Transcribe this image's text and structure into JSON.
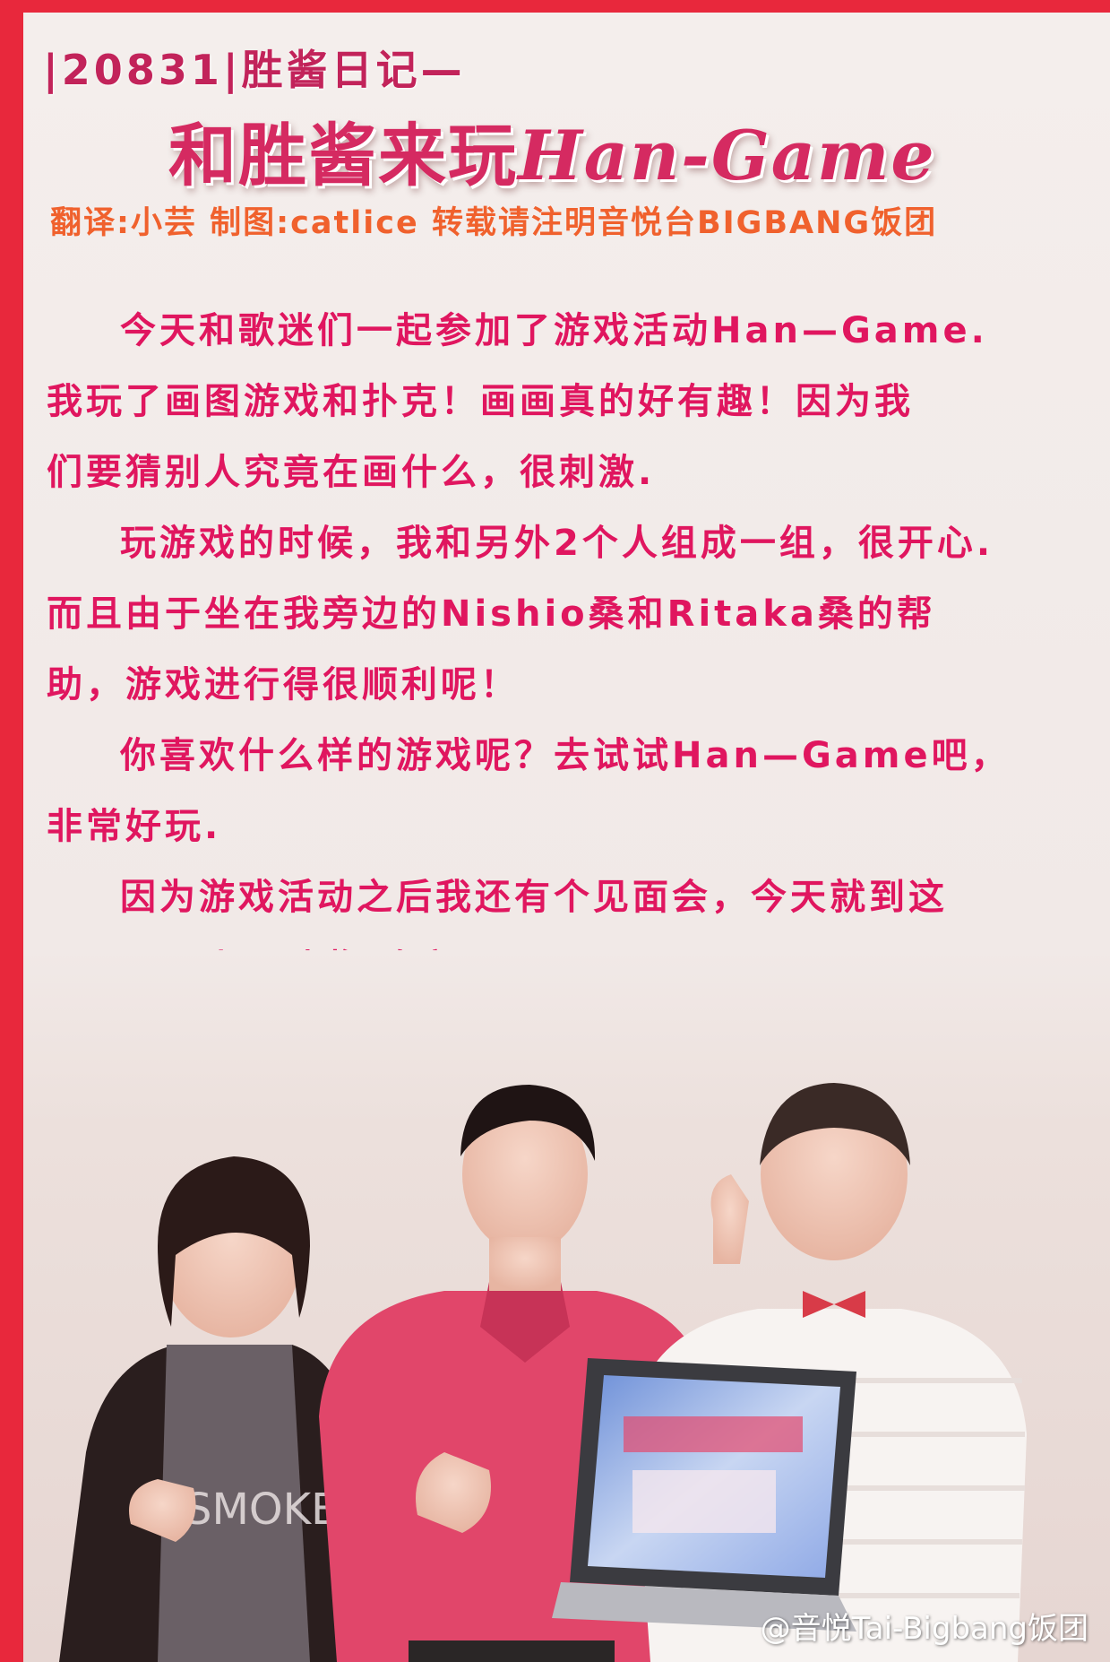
{
  "header": {
    "series_line": "|20831|胜酱日记—",
    "title_cn": "和胜酱来玩",
    "title_en": "Han-Game",
    "credits": "翻译:小芸 制图:catlice 转载请注明音悦台BIGBANG饭团"
  },
  "body": {
    "lines": [
      "今天和歌迷们一起参加了游戏活动Han—Game.",
      "我玩了画图游戏和扑克！画画真的好有趣！因为我",
      "们要猜别人究竟在画什么，很刺激.",
      "玩游戏的时候，我和另外2个人组成一组，很开心.",
      "而且由于坐在我旁边的Nishio桑和Ritaka桑的帮",
      "助，游戏进行得很顺利呢！",
      "你喜欢什么样的游戏呢？去试试Han—Game吧，",
      "非常好玩.",
      "因为游戏活动之后我还有个见面会，今天就到这",
      "儿吧！以上是胜酱.晚安！"
    ]
  },
  "photo": {
    "shirt_text": "SMOKE",
    "watermark": "@音悦Tai-Bigbang饭团"
  },
  "colors": {
    "frame": "#e8283c",
    "body_text": "#e0165f",
    "title": "#d52a61",
    "credits": "#f0612d"
  }
}
